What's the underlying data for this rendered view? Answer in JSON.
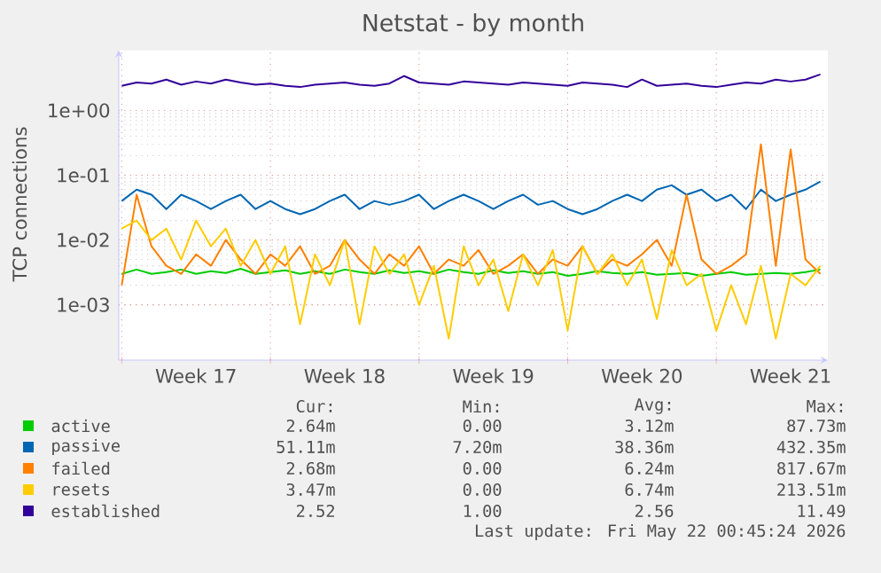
{
  "chart_data": {
    "type": "line",
    "title": "Netstat - by month",
    "ylabel": "TCP connections",
    "log": "y",
    "grid": true,
    "legend": "bottom",
    "marker": "none",
    "line_style": "solid",
    "ylim": [
      0.00014,
      8.5
    ],
    "yticks": [
      {
        "value": 0.001,
        "label": "1e-03"
      },
      {
        "value": 0.01,
        "label": "1e-02"
      },
      {
        "value": 0.1,
        "label": "1e-01"
      },
      {
        "value": 1,
        "label": "1e+00"
      }
    ],
    "categories": [
      null,
      null,
      null,
      null,
      null,
      "Week 17",
      null,
      null,
      null,
      null,
      null,
      null,
      null,
      null,
      null,
      "Week 18",
      null,
      null,
      null,
      null,
      null,
      null,
      null,
      null,
      null,
      "Week 19",
      null,
      null,
      null,
      null,
      null,
      null,
      null,
      null,
      null,
      "Week 20",
      null,
      null,
      null,
      null,
      null,
      null,
      null,
      null,
      null,
      "Week 21",
      null,
      null
    ],
    "series": [
      {
        "name": "active",
        "color": "#00cc00",
        "values": [
          0.003,
          0.0035,
          0.003,
          0.0032,
          0.0035,
          0.003,
          0.0033,
          0.0031,
          0.0036,
          0.003,
          0.0032,
          0.0034,
          0.003,
          0.0033,
          0.003,
          0.0035,
          0.0032,
          0.003,
          0.0034,
          0.0031,
          0.0033,
          0.003,
          0.0035,
          0.0032,
          0.003,
          0.0034,
          0.0031,
          0.0033,
          0.003,
          0.0032,
          0.0028,
          0.003,
          0.0033,
          0.0031,
          0.003,
          0.0032,
          0.0029,
          0.003,
          0.0031,
          0.0028,
          0.003,
          0.0032,
          0.0029,
          0.003,
          0.0031,
          0.003,
          0.0032,
          0.0035
        ]
      },
      {
        "name": "passive",
        "color": "#0066b3",
        "values": [
          0.04,
          0.06,
          0.05,
          0.03,
          0.05,
          0.04,
          0.03,
          0.04,
          0.05,
          0.03,
          0.04,
          0.03,
          0.025,
          0.03,
          0.04,
          0.05,
          0.03,
          0.04,
          0.035,
          0.04,
          0.05,
          0.03,
          0.04,
          0.05,
          0.04,
          0.03,
          0.04,
          0.05,
          0.035,
          0.04,
          0.03,
          0.025,
          0.03,
          0.04,
          0.05,
          0.04,
          0.06,
          0.07,
          0.05,
          0.06,
          0.04,
          0.05,
          0.03,
          0.06,
          0.04,
          0.05,
          0.06,
          0.08
        ]
      },
      {
        "name": "failed",
        "color": "#ff8000",
        "values": [
          0.002,
          0.05,
          0.008,
          0.004,
          0.003,
          0.006,
          0.004,
          0.01,
          0.005,
          0.003,
          0.006,
          0.004,
          0.008,
          0.003,
          0.004,
          0.01,
          0.005,
          0.003,
          0.006,
          0.004,
          0.008,
          0.003,
          0.005,
          0.004,
          0.007,
          0.003,
          0.004,
          0.006,
          0.003,
          0.005,
          0.004,
          0.008,
          0.003,
          0.005,
          0.004,
          0.006,
          0.01,
          0.004,
          0.05,
          0.005,
          0.003,
          0.004,
          0.006,
          0.3,
          0.004,
          0.25,
          0.005,
          0.003
        ]
      },
      {
        "name": "resets",
        "color": "#ffcc00",
        "values": [
          0.015,
          0.02,
          0.01,
          0.015,
          0.005,
          0.02,
          0.008,
          0.015,
          0.004,
          0.01,
          0.003,
          0.008,
          0.0005,
          0.006,
          0.002,
          0.01,
          0.0005,
          0.008,
          0.003,
          0.006,
          0.001,
          0.004,
          0.0003,
          0.008,
          0.002,
          0.005,
          0.0008,
          0.006,
          0.002,
          0.007,
          0.0004,
          0.008,
          0.003,
          0.006,
          0.002,
          0.005,
          0.0006,
          0.007,
          0.002,
          0.003,
          0.0004,
          0.002,
          0.0005,
          0.004,
          0.0003,
          0.003,
          0.002,
          0.004
        ]
      },
      {
        "name": "established",
        "color": "#330099",
        "values": [
          2.4,
          2.7,
          2.6,
          3.0,
          2.5,
          2.8,
          2.6,
          3.0,
          2.7,
          2.5,
          2.6,
          2.4,
          2.3,
          2.5,
          2.6,
          2.7,
          2.5,
          2.4,
          2.6,
          3.4,
          2.7,
          2.6,
          2.5,
          2.8,
          2.7,
          2.6,
          2.5,
          2.7,
          2.6,
          2.5,
          2.4,
          2.7,
          2.6,
          2.5,
          2.3,
          3.0,
          2.4,
          2.5,
          2.6,
          2.4,
          2.3,
          2.5,
          2.7,
          2.6,
          3.0,
          2.8,
          3.0,
          3.6
        ]
      }
    ],
    "annotations": [
      "Cur:",
      "Min:",
      "Avg:",
      "Max:",
      "2.64m",
      "0.00",
      "3.12m",
      "87.73m",
      "51.11m",
      "7.20m",
      "38.36m",
      "432.35m",
      "2.68m",
      "0.00",
      "6.24m",
      "817.67m",
      "3.47m",
      "0.00",
      "6.74m",
      "213.51m",
      "2.52",
      "1.00",
      "2.56",
      "11.49",
      "Last update: Fri May 22 00:45:24 2026"
    ]
  }
}
